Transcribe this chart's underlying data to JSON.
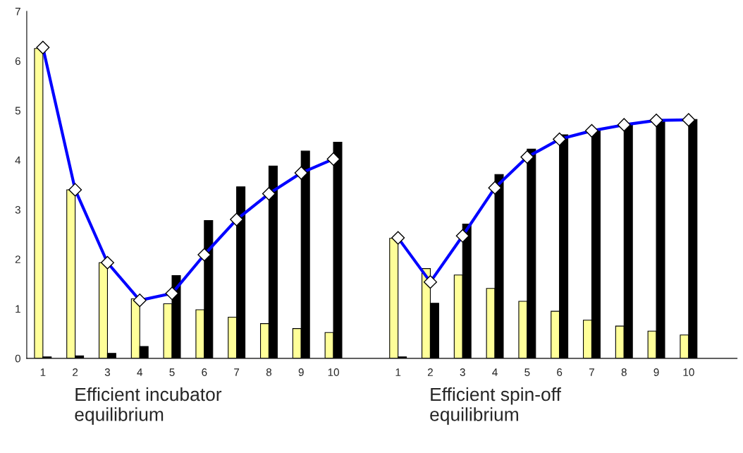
{
  "chart_data": {
    "type": "bar",
    "categories": [
      "1",
      "2",
      "3",
      "4",
      "5",
      "6",
      "7",
      "8",
      "9",
      "10",
      null,
      "1",
      "2",
      "3",
      "4",
      "5",
      "6",
      "7",
      "8",
      "9",
      "10",
      null
    ],
    "series": [
      {
        "color": "#ffff99",
        "values": [
          6.25,
          3.4,
          1.93,
          1.2,
          1.1,
          0.98,
          0.83,
          0.7,
          0.6,
          0.52,
          null,
          2.42,
          1.81,
          1.68,
          1.41,
          1.15,
          0.95,
          0.77,
          0.65,
          0.55,
          0.47,
          null
        ]
      },
      {
        "color": "#000000",
        "values": [
          0.03,
          0.05,
          0.1,
          0.24,
          1.67,
          2.78,
          3.46,
          3.88,
          4.18,
          4.36,
          null,
          0.03,
          1.11,
          2.71,
          3.71,
          4.22,
          4.51,
          4.62,
          4.72,
          4.8,
          4.82,
          null
        ]
      },
      {
        "type": "line",
        "color": "#0000ff",
        "marker": "diamond",
        "values": [
          6.27,
          3.4,
          1.93,
          1.17,
          1.31,
          2.09,
          2.8,
          3.32,
          3.74,
          4.02,
          null,
          2.43,
          1.54,
          2.47,
          3.44,
          4.06,
          4.42,
          4.59,
          4.71,
          4.8,
          4.81,
          null
        ]
      }
    ],
    "ylim": [
      0,
      7
    ],
    "yticks": [
      0,
      1,
      2,
      3,
      4,
      5,
      6,
      7
    ],
    "grid": false,
    "legend": false,
    "annotations": [
      "Efficient incubator\nequilibrium",
      "Efficient spin-off\nequilibrium"
    ]
  }
}
